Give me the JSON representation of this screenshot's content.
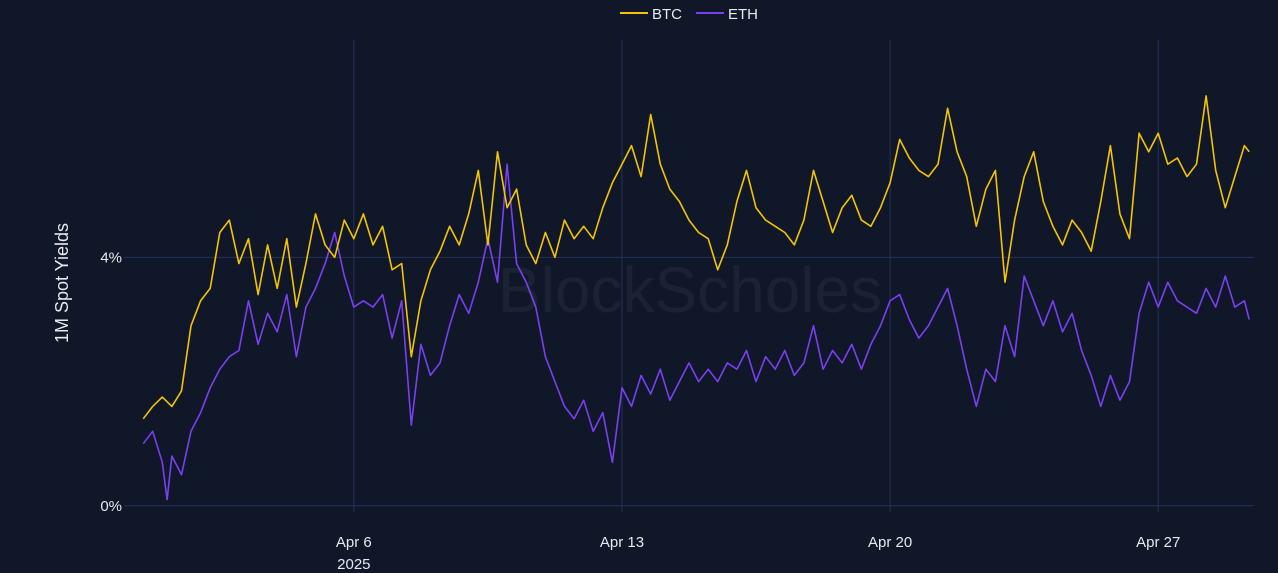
{
  "chart_data": {
    "type": "line",
    "title": "",
    "xlabel": "",
    "ylabel": "1M Spot Yields",
    "watermark": "BlockScholes",
    "x_range": [
      "2025-03-31",
      "2025-04-29"
    ],
    "x_ticks": [
      {
        "date": "2025-04-06",
        "label": "Apr 6",
        "sublabel": "2025"
      },
      {
        "date": "2025-04-13",
        "label": "Apr 13",
        "sublabel": ""
      },
      {
        "date": "2025-04-20",
        "label": "Apr 20",
        "sublabel": ""
      },
      {
        "date": "2025-04-27",
        "label": "Apr 27",
        "sublabel": ""
      }
    ],
    "y_ticks": [
      {
        "value": 0,
        "label": "0%"
      },
      {
        "value": 4,
        "label": "4%"
      }
    ],
    "ylim": [
      -0.1,
      7.5
    ],
    "grid": true,
    "legend_position": "top-center",
    "background": "#0f1729",
    "grid_color": "#27315a",
    "series": [
      {
        "name": "BTC",
        "color": "#f5c400",
        "points": [
          [
            "2025-03-31 12:00",
            1.4
          ],
          [
            "2025-03-31 18:00",
            1.6
          ],
          [
            "2025-04-01 00:00",
            1.75
          ],
          [
            "2025-04-01 06:00",
            1.6
          ],
          [
            "2025-04-01 12:00",
            1.85
          ],
          [
            "2025-04-01 18:00",
            2.9
          ],
          [
            "2025-04-02 00:00",
            3.3
          ],
          [
            "2025-04-02 06:00",
            3.5
          ],
          [
            "2025-04-02 12:00",
            4.4
          ],
          [
            "2025-04-02 18:00",
            4.6
          ],
          [
            "2025-04-03 00:00",
            3.9
          ],
          [
            "2025-04-03 06:00",
            4.3
          ],
          [
            "2025-04-03 12:00",
            3.4
          ],
          [
            "2025-04-03 18:00",
            4.2
          ],
          [
            "2025-04-04 00:00",
            3.5
          ],
          [
            "2025-04-04 06:00",
            4.3
          ],
          [
            "2025-04-04 12:00",
            3.2
          ],
          [
            "2025-04-04 18:00",
            3.9
          ],
          [
            "2025-04-05 00:00",
            4.7
          ],
          [
            "2025-04-05 06:00",
            4.2
          ],
          [
            "2025-04-05 12:00",
            4.0
          ],
          [
            "2025-04-05 18:00",
            4.6
          ],
          [
            "2025-04-06 00:00",
            4.3
          ],
          [
            "2025-04-06 06:00",
            4.7
          ],
          [
            "2025-04-06 12:00",
            4.2
          ],
          [
            "2025-04-06 18:00",
            4.5
          ],
          [
            "2025-04-07 00:00",
            3.8
          ],
          [
            "2025-04-07 06:00",
            3.9
          ],
          [
            "2025-04-07 12:00",
            2.4
          ],
          [
            "2025-04-07 18:00",
            3.3
          ],
          [
            "2025-04-08 00:00",
            3.8
          ],
          [
            "2025-04-08 06:00",
            4.1
          ],
          [
            "2025-04-08 12:00",
            4.5
          ],
          [
            "2025-04-08 18:00",
            4.2
          ],
          [
            "2025-04-09 00:00",
            4.7
          ],
          [
            "2025-04-09 06:00",
            5.4
          ],
          [
            "2025-04-09 12:00",
            4.2
          ],
          [
            "2025-04-09 18:00",
            5.7
          ],
          [
            "2025-04-10 00:00",
            4.8
          ],
          [
            "2025-04-10 06:00",
            5.1
          ],
          [
            "2025-04-10 12:00",
            4.2
          ],
          [
            "2025-04-10 18:00",
            3.9
          ],
          [
            "2025-04-11 00:00",
            4.4
          ],
          [
            "2025-04-11 06:00",
            4.0
          ],
          [
            "2025-04-11 12:00",
            4.6
          ],
          [
            "2025-04-11 18:00",
            4.3
          ],
          [
            "2025-04-12 00:00",
            4.5
          ],
          [
            "2025-04-12 06:00",
            4.3
          ],
          [
            "2025-04-12 12:00",
            4.8
          ],
          [
            "2025-04-12 18:00",
            5.2
          ],
          [
            "2025-04-13 00:00",
            5.5
          ],
          [
            "2025-04-13 06:00",
            5.8
          ],
          [
            "2025-04-13 12:00",
            5.3
          ],
          [
            "2025-04-13 18:00",
            6.3
          ],
          [
            "2025-04-14 00:00",
            5.5
          ],
          [
            "2025-04-14 06:00",
            5.1
          ],
          [
            "2025-04-14 12:00",
            4.9
          ],
          [
            "2025-04-14 18:00",
            4.6
          ],
          [
            "2025-04-15 00:00",
            4.4
          ],
          [
            "2025-04-15 06:00",
            4.3
          ],
          [
            "2025-04-15 12:00",
            3.8
          ],
          [
            "2025-04-15 18:00",
            4.2
          ],
          [
            "2025-04-16 00:00",
            4.9
          ],
          [
            "2025-04-16 06:00",
            5.4
          ],
          [
            "2025-04-16 12:00",
            4.8
          ],
          [
            "2025-04-16 18:00",
            4.6
          ],
          [
            "2025-04-17 00:00",
            4.5
          ],
          [
            "2025-04-17 06:00",
            4.4
          ],
          [
            "2025-04-17 12:00",
            4.2
          ],
          [
            "2025-04-17 18:00",
            4.6
          ],
          [
            "2025-04-18 00:00",
            5.4
          ],
          [
            "2025-04-18 06:00",
            4.9
          ],
          [
            "2025-04-18 12:00",
            4.4
          ],
          [
            "2025-04-18 18:00",
            4.8
          ],
          [
            "2025-04-19 00:00",
            5.0
          ],
          [
            "2025-04-19 06:00",
            4.6
          ],
          [
            "2025-04-19 12:00",
            4.5
          ],
          [
            "2025-04-19 18:00",
            4.8
          ],
          [
            "2025-04-20 00:00",
            5.2
          ],
          [
            "2025-04-20 06:00",
            5.9
          ],
          [
            "2025-04-20 12:00",
            5.6
          ],
          [
            "2025-04-20 18:00",
            5.4
          ],
          [
            "2025-04-21 00:00",
            5.3
          ],
          [
            "2025-04-21 06:00",
            5.5
          ],
          [
            "2025-04-21 12:00",
            6.4
          ],
          [
            "2025-04-21 18:00",
            5.7
          ],
          [
            "2025-04-22 00:00",
            5.3
          ],
          [
            "2025-04-22 06:00",
            4.5
          ],
          [
            "2025-04-22 12:00",
            5.1
          ],
          [
            "2025-04-22 18:00",
            5.4
          ],
          [
            "2025-04-23 00:00",
            3.6
          ],
          [
            "2025-04-23 06:00",
            4.6
          ],
          [
            "2025-04-23 12:00",
            5.3
          ],
          [
            "2025-04-23 18:00",
            5.7
          ],
          [
            "2025-04-24 00:00",
            4.9
          ],
          [
            "2025-04-24 06:00",
            4.5
          ],
          [
            "2025-04-24 12:00",
            4.2
          ],
          [
            "2025-04-24 18:00",
            4.6
          ],
          [
            "2025-04-25 00:00",
            4.4
          ],
          [
            "2025-04-25 06:00",
            4.1
          ],
          [
            "2025-04-25 12:00",
            4.9
          ],
          [
            "2025-04-25 18:00",
            5.8
          ],
          [
            "2025-04-26 00:00",
            4.7
          ],
          [
            "2025-04-26 06:00",
            4.3
          ],
          [
            "2025-04-26 12:00",
            6.0
          ],
          [
            "2025-04-26 18:00",
            5.7
          ],
          [
            "2025-04-27 00:00",
            6.0
          ],
          [
            "2025-04-27 06:00",
            5.5
          ],
          [
            "2025-04-27 12:00",
            5.6
          ],
          [
            "2025-04-27 18:00",
            5.3
          ],
          [
            "2025-04-28 00:00",
            5.5
          ],
          [
            "2025-04-28 06:00",
            6.6
          ],
          [
            "2025-04-28 12:00",
            5.4
          ],
          [
            "2025-04-28 18:00",
            4.8
          ],
          [
            "2025-04-29 00:00",
            5.3
          ],
          [
            "2025-04-29 06:00",
            5.8
          ],
          [
            "2025-04-29 09:00",
            5.7
          ]
        ]
      },
      {
        "name": "ETH",
        "color": "#7b3ff2",
        "points": [
          [
            "2025-03-31 12:00",
            1.0
          ],
          [
            "2025-03-31 18:00",
            1.2
          ],
          [
            "2025-04-01 00:00",
            0.7
          ],
          [
            "2025-04-01 03:00",
            0.1
          ],
          [
            "2025-04-01 06:00",
            0.8
          ],
          [
            "2025-04-01 12:00",
            0.5
          ],
          [
            "2025-04-01 18:00",
            1.2
          ],
          [
            "2025-04-02 00:00",
            1.5
          ],
          [
            "2025-04-02 06:00",
            1.9
          ],
          [
            "2025-04-02 12:00",
            2.2
          ],
          [
            "2025-04-02 18:00",
            2.4
          ],
          [
            "2025-04-03 00:00",
            2.5
          ],
          [
            "2025-04-03 06:00",
            3.3
          ],
          [
            "2025-04-03 12:00",
            2.6
          ],
          [
            "2025-04-03 18:00",
            3.1
          ],
          [
            "2025-04-04 00:00",
            2.8
          ],
          [
            "2025-04-04 06:00",
            3.4
          ],
          [
            "2025-04-04 12:00",
            2.4
          ],
          [
            "2025-04-04 18:00",
            3.2
          ],
          [
            "2025-04-05 00:00",
            3.5
          ],
          [
            "2025-04-05 06:00",
            3.9
          ],
          [
            "2025-04-05 12:00",
            4.4
          ],
          [
            "2025-04-05 18:00",
            3.7
          ],
          [
            "2025-04-06 00:00",
            3.2
          ],
          [
            "2025-04-06 06:00",
            3.3
          ],
          [
            "2025-04-06 12:00",
            3.2
          ],
          [
            "2025-04-06 18:00",
            3.4
          ],
          [
            "2025-04-07 00:00",
            2.7
          ],
          [
            "2025-04-07 06:00",
            3.3
          ],
          [
            "2025-04-07 12:00",
            1.3
          ],
          [
            "2025-04-07 18:00",
            2.6
          ],
          [
            "2025-04-08 00:00",
            2.1
          ],
          [
            "2025-04-08 06:00",
            2.3
          ],
          [
            "2025-04-08 12:00",
            2.9
          ],
          [
            "2025-04-08 18:00",
            3.4
          ],
          [
            "2025-04-09 00:00",
            3.1
          ],
          [
            "2025-04-09 06:00",
            3.6
          ],
          [
            "2025-04-09 12:00",
            4.3
          ],
          [
            "2025-04-09 18:00",
            3.6
          ],
          [
            "2025-04-10 00:00",
            5.5
          ],
          [
            "2025-04-10 06:00",
            3.9
          ],
          [
            "2025-04-10 12:00",
            3.6
          ],
          [
            "2025-04-10 18:00",
            3.2
          ],
          [
            "2025-04-11 00:00",
            2.4
          ],
          [
            "2025-04-11 06:00",
            2.0
          ],
          [
            "2025-04-11 12:00",
            1.6
          ],
          [
            "2025-04-11 18:00",
            1.4
          ],
          [
            "2025-04-12 00:00",
            1.7
          ],
          [
            "2025-04-12 06:00",
            1.2
          ],
          [
            "2025-04-12 12:00",
            1.5
          ],
          [
            "2025-04-12 18:00",
            0.7
          ],
          [
            "2025-04-13 00:00",
            1.9
          ],
          [
            "2025-04-13 06:00",
            1.6
          ],
          [
            "2025-04-13 12:00",
            2.1
          ],
          [
            "2025-04-13 18:00",
            1.8
          ],
          [
            "2025-04-14 00:00",
            2.2
          ],
          [
            "2025-04-14 06:00",
            1.7
          ],
          [
            "2025-04-14 12:00",
            2.0
          ],
          [
            "2025-04-14 18:00",
            2.3
          ],
          [
            "2025-04-15 00:00",
            2.0
          ],
          [
            "2025-04-15 06:00",
            2.2
          ],
          [
            "2025-04-15 12:00",
            2.0
          ],
          [
            "2025-04-15 18:00",
            2.3
          ],
          [
            "2025-04-16 00:00",
            2.2
          ],
          [
            "2025-04-16 06:00",
            2.5
          ],
          [
            "2025-04-16 12:00",
            2.0
          ],
          [
            "2025-04-16 18:00",
            2.4
          ],
          [
            "2025-04-17 00:00",
            2.2
          ],
          [
            "2025-04-17 06:00",
            2.5
          ],
          [
            "2025-04-17 12:00",
            2.1
          ],
          [
            "2025-04-17 18:00",
            2.3
          ],
          [
            "2025-04-18 00:00",
            2.9
          ],
          [
            "2025-04-18 06:00",
            2.2
          ],
          [
            "2025-04-18 12:00",
            2.5
          ],
          [
            "2025-04-18 18:00",
            2.3
          ],
          [
            "2025-04-19 00:00",
            2.6
          ],
          [
            "2025-04-19 06:00",
            2.2
          ],
          [
            "2025-04-19 12:00",
            2.6
          ],
          [
            "2025-04-19 18:00",
            2.9
          ],
          [
            "2025-04-20 00:00",
            3.3
          ],
          [
            "2025-04-20 06:00",
            3.4
          ],
          [
            "2025-04-20 12:00",
            3.0
          ],
          [
            "2025-04-20 18:00",
            2.7
          ],
          [
            "2025-04-21 00:00",
            2.9
          ],
          [
            "2025-04-21 06:00",
            3.2
          ],
          [
            "2025-04-21 12:00",
            3.5
          ],
          [
            "2025-04-21 18:00",
            2.9
          ],
          [
            "2025-04-22 00:00",
            2.2
          ],
          [
            "2025-04-22 06:00",
            1.6
          ],
          [
            "2025-04-22 12:00",
            2.2
          ],
          [
            "2025-04-22 18:00",
            2.0
          ],
          [
            "2025-04-23 00:00",
            2.9
          ],
          [
            "2025-04-23 06:00",
            2.4
          ],
          [
            "2025-04-23 12:00",
            3.7
          ],
          [
            "2025-04-23 18:00",
            3.3
          ],
          [
            "2025-04-24 00:00",
            2.9
          ],
          [
            "2025-04-24 06:00",
            3.3
          ],
          [
            "2025-04-24 12:00",
            2.8
          ],
          [
            "2025-04-24 18:00",
            3.1
          ],
          [
            "2025-04-25 00:00",
            2.5
          ],
          [
            "2025-04-25 06:00",
            2.1
          ],
          [
            "2025-04-25 12:00",
            1.6
          ],
          [
            "2025-04-25 18:00",
            2.1
          ],
          [
            "2025-04-26 00:00",
            1.7
          ],
          [
            "2025-04-26 06:00",
            2.0
          ],
          [
            "2025-04-26 12:00",
            3.1
          ],
          [
            "2025-04-26 18:00",
            3.6
          ],
          [
            "2025-04-27 00:00",
            3.2
          ],
          [
            "2025-04-27 06:00",
            3.6
          ],
          [
            "2025-04-27 12:00",
            3.3
          ],
          [
            "2025-04-27 18:00",
            3.2
          ],
          [
            "2025-04-28 00:00",
            3.1
          ],
          [
            "2025-04-28 06:00",
            3.5
          ],
          [
            "2025-04-28 12:00",
            3.2
          ],
          [
            "2025-04-28 18:00",
            3.7
          ],
          [
            "2025-04-29 00:00",
            3.2
          ],
          [
            "2025-04-29 06:00",
            3.3
          ],
          [
            "2025-04-29 09:00",
            3.0
          ]
        ]
      }
    ]
  }
}
